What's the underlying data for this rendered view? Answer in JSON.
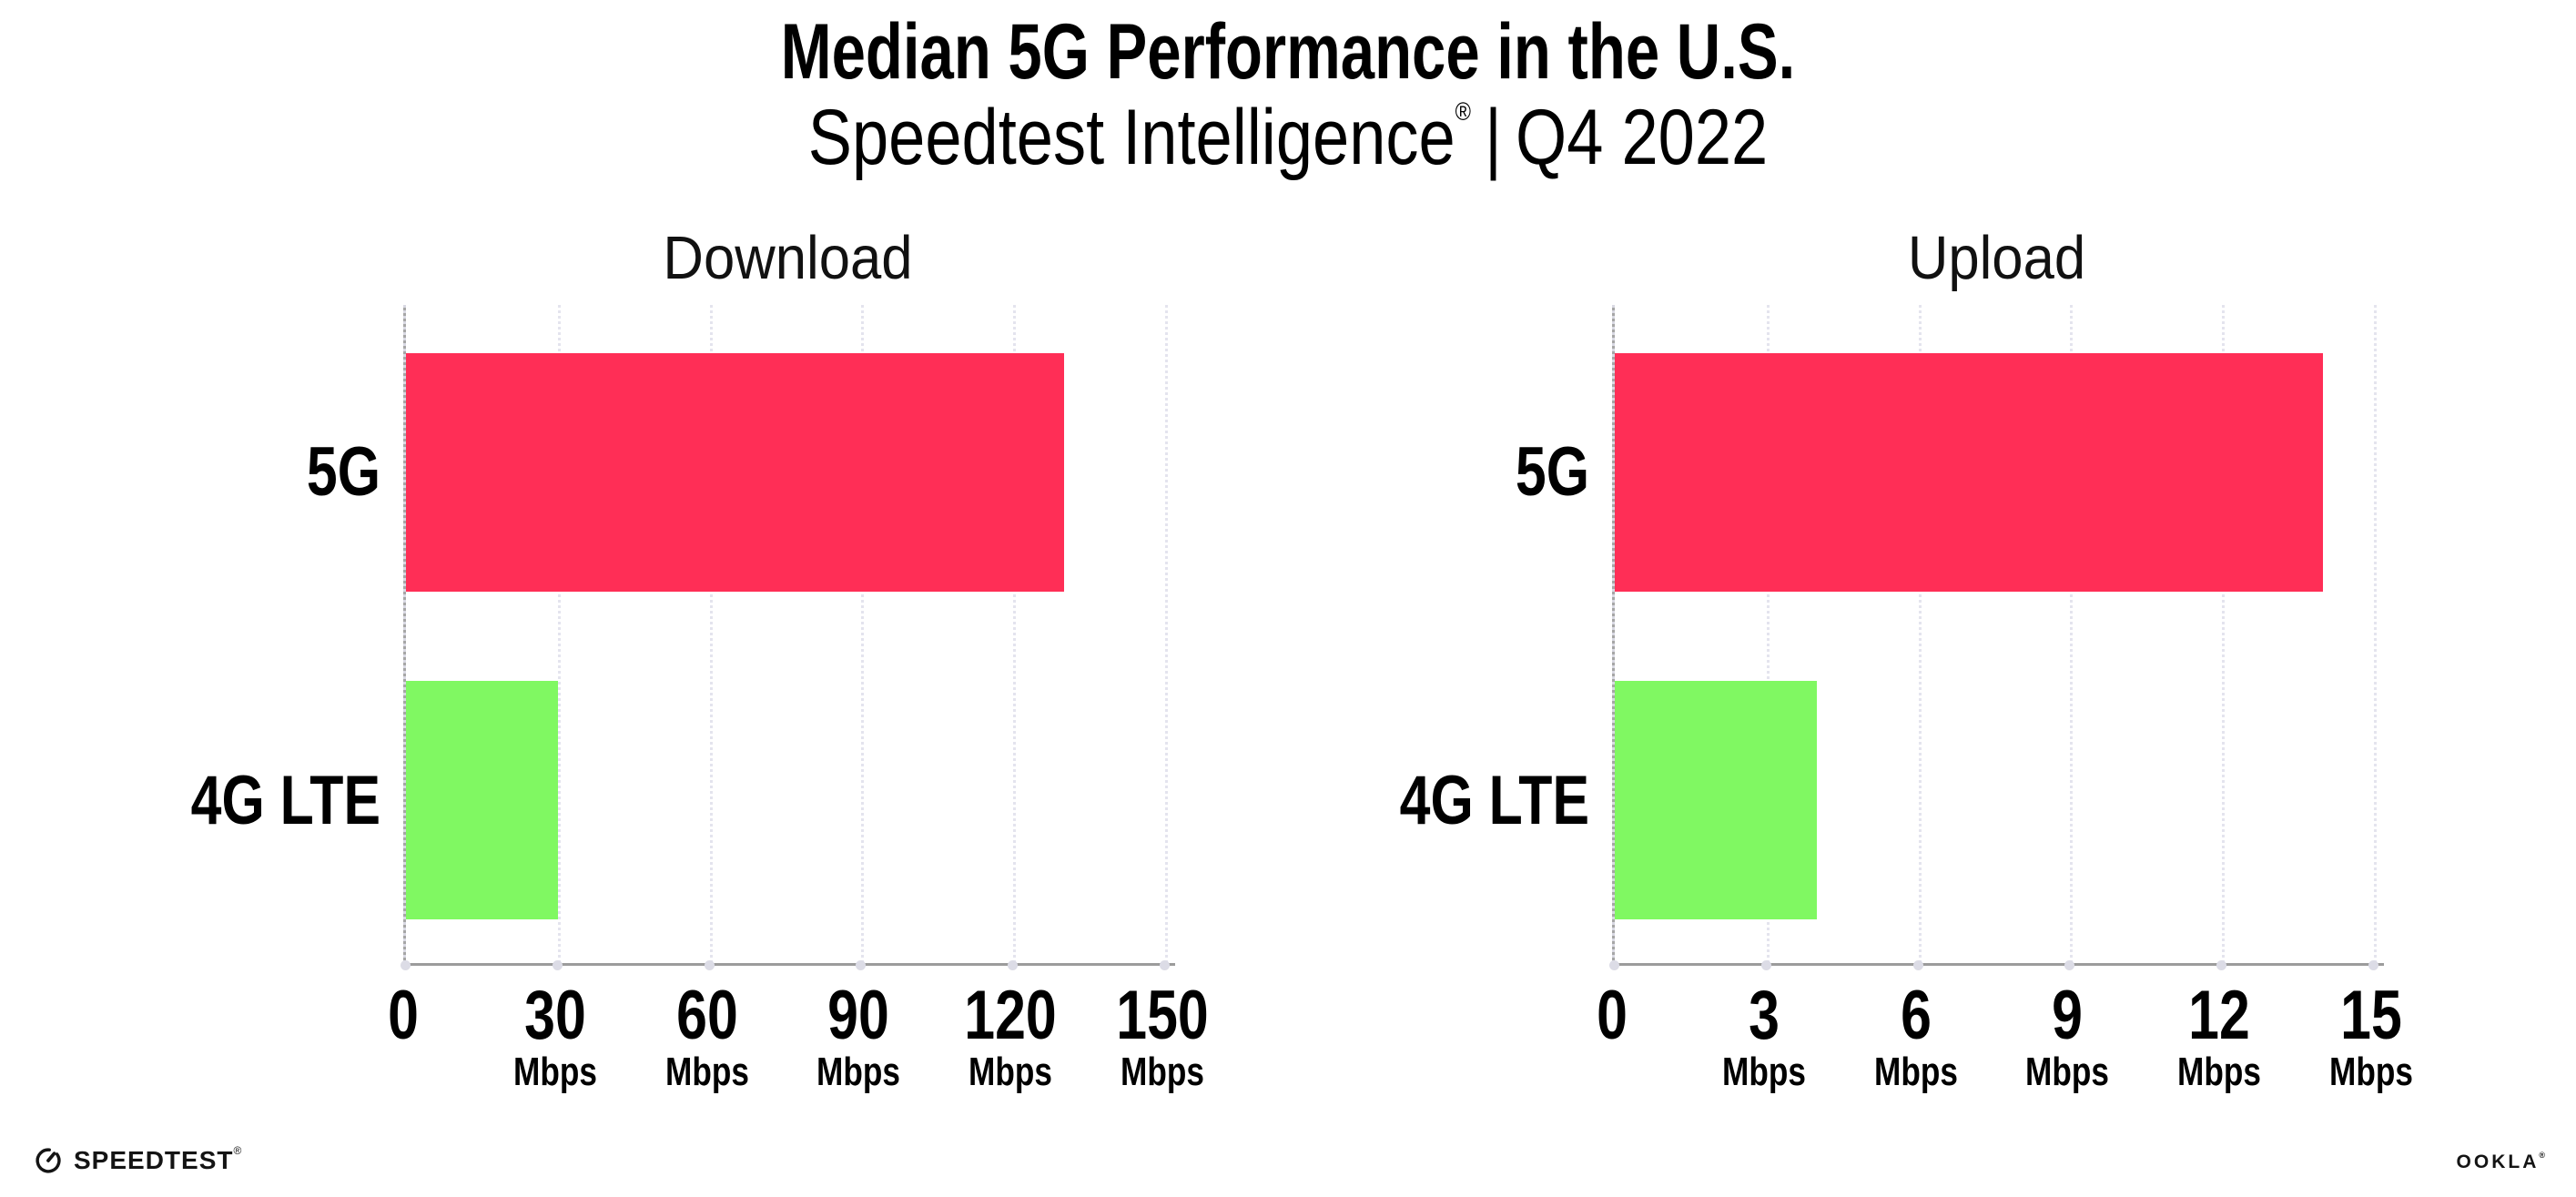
{
  "header": {
    "title": "Median 5G Performance in the U.S.",
    "subtitle": {
      "brand": "Speedtest Intelligence",
      "registered_mark": "®",
      "separator": "|",
      "period": "Q4 2022"
    }
  },
  "chart_data": [
    {
      "type": "bar",
      "orientation": "horizontal",
      "title": "Download",
      "categories": [
        "5G",
        "4G LTE"
      ],
      "values": [
        130,
        30
      ],
      "value_unit": "Mbps",
      "colors": [
        "#FF2E56",
        "#80F862"
      ],
      "xlim": [
        0,
        152
      ],
      "grid": "vertical-dotted",
      "legend": "none",
      "xlabel": "",
      "ylabel": "",
      "ticks": [
        {
          "value": 0,
          "label": "0",
          "unit": ""
        },
        {
          "value": 30,
          "label": "30",
          "unit": "Mbps"
        },
        {
          "value": 60,
          "label": "60",
          "unit": "Mbps"
        },
        {
          "value": 90,
          "label": "90",
          "unit": "Mbps"
        },
        {
          "value": 120,
          "label": "120",
          "unit": "Mbps"
        },
        {
          "value": 150,
          "label": "150",
          "unit": "Mbps"
        }
      ]
    },
    {
      "type": "bar",
      "orientation": "horizontal",
      "title": "Upload",
      "categories": [
        "5G",
        "4G LTE"
      ],
      "values": [
        14,
        4
      ],
      "value_unit": "Mbps",
      "colors": [
        "#FF2E56",
        "#80F862"
      ],
      "xlim": [
        0,
        15.2
      ],
      "grid": "vertical-dotted",
      "legend": "none",
      "xlabel": "",
      "ylabel": "",
      "ticks": [
        {
          "value": 0,
          "label": "0",
          "unit": ""
        },
        {
          "value": 3,
          "label": "3",
          "unit": "Mbps"
        },
        {
          "value": 6,
          "label": "6",
          "unit": "Mbps"
        },
        {
          "value": 9,
          "label": "9",
          "unit": "Mbps"
        },
        {
          "value": 12,
          "label": "12",
          "unit": "Mbps"
        },
        {
          "value": 15,
          "label": "15",
          "unit": "Mbps"
        }
      ]
    }
  ],
  "footer": {
    "speedtest_label": "SPEEDTEST",
    "speedtest_mark": "®",
    "ookla_label": "OOKLA",
    "ookla_mark": "®"
  }
}
